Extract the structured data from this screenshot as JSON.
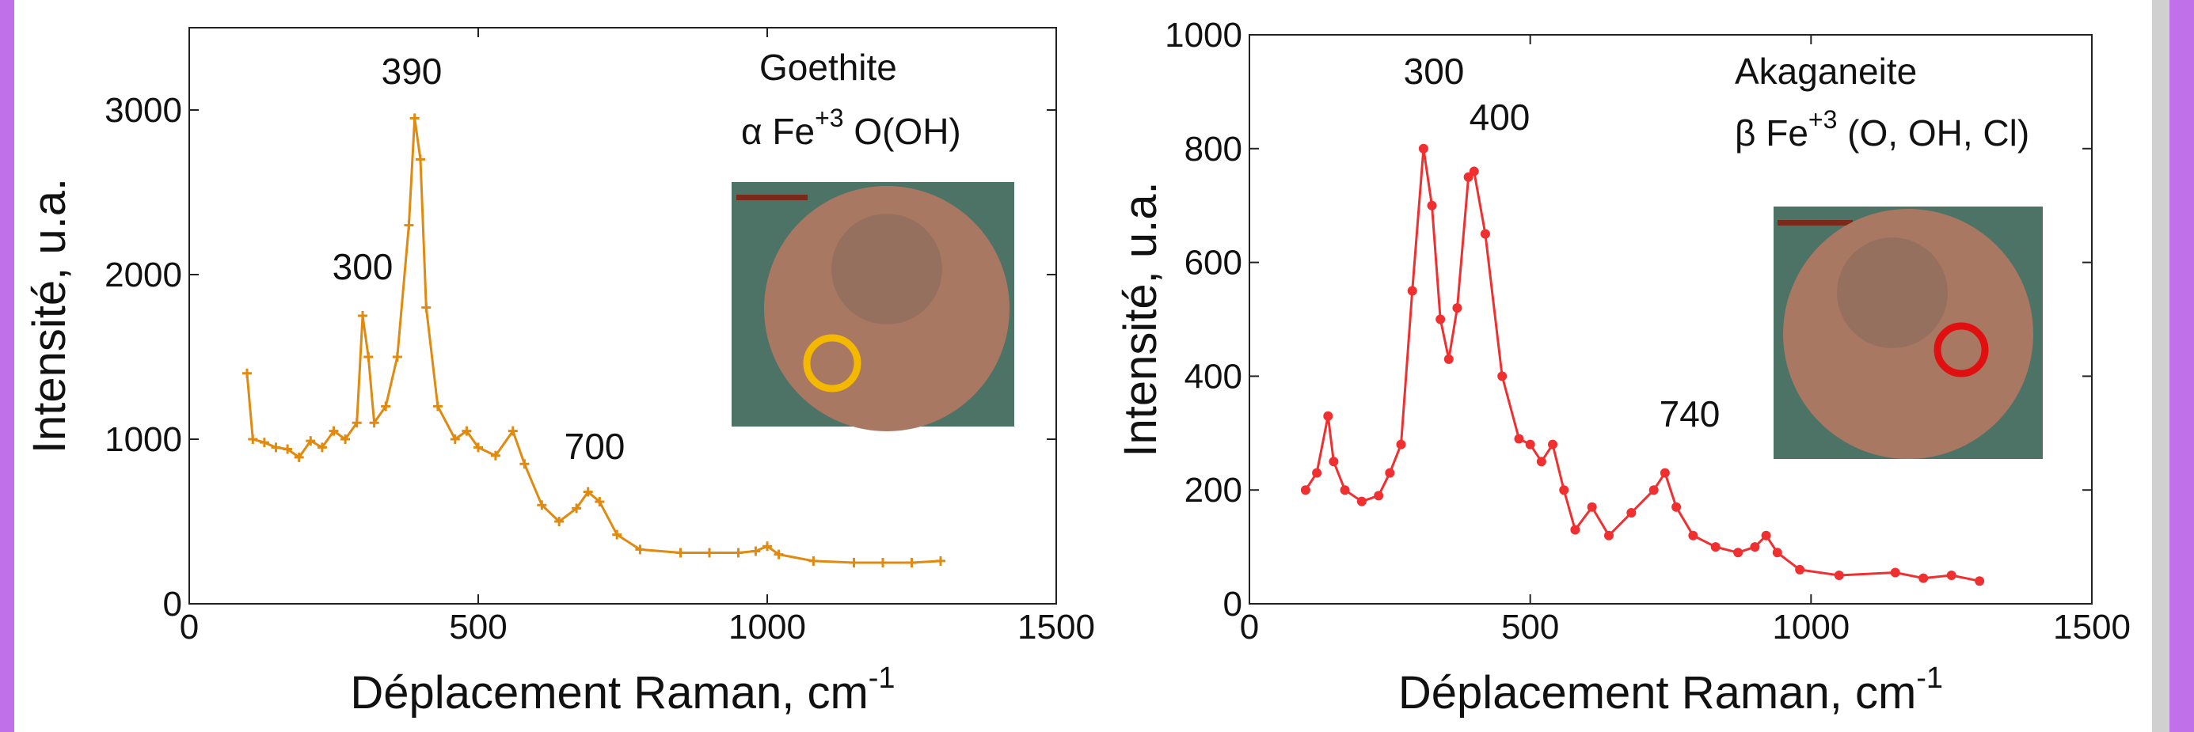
{
  "chart_data": [
    {
      "type": "line",
      "color": "#e08a10",
      "x": [
        100,
        110,
        130,
        150,
        170,
        190,
        210,
        230,
        250,
        270,
        290,
        300,
        310,
        320,
        340,
        360,
        380,
        390,
        400,
        410,
        430,
        460,
        480,
        500,
        530,
        560,
        580,
        610,
        640,
        670,
        690,
        710,
        740,
        780,
        850,
        900,
        950,
        980,
        1000,
        1020,
        1080,
        1150,
        1200,
        1250,
        1300
      ],
      "values": [
        1400,
        1000,
        980,
        950,
        940,
        890,
        990,
        950,
        1050,
        1000,
        1100,
        1750,
        1500,
        1100,
        1200,
        1500,
        2300,
        2950,
        2700,
        1800,
        1200,
        1000,
        1050,
        950,
        900,
        1050,
        850,
        600,
        500,
        580,
        680,
        620,
        420,
        330,
        310,
        310,
        310,
        320,
        350,
        300,
        260,
        250,
        250,
        250,
        260
      ],
      "xlim": [
        0,
        1500
      ],
      "xticks": [
        0,
        500,
        1000,
        1500
      ],
      "ylim": [
        0,
        3500
      ],
      "yticks": [
        0,
        1000,
        2000,
        3000
      ],
      "x_label": [
        "Déplacement Raman, cm",
        "-1"
      ],
      "y_label": "Intensité, u.a.",
      "annotations": [
        "390",
        "300",
        "700"
      ],
      "mineral": "Goethite",
      "formula": [
        "α Fe",
        "+3",
        " O(OH)"
      ]
    },
    {
      "type": "line",
      "color": "#f03030",
      "x": [
        100,
        120,
        140,
        150,
        170,
        200,
        230,
        250,
        270,
        290,
        310,
        325,
        340,
        355,
        370,
        390,
        400,
        420,
        450,
        480,
        500,
        520,
        540,
        560,
        580,
        610,
        640,
        680,
        720,
        740,
        760,
        790,
        830,
        870,
        900,
        920,
        940,
        980,
        1050,
        1150,
        1200,
        1250,
        1300
      ],
      "values": [
        200,
        230,
        330,
        250,
        200,
        180,
        190,
        230,
        280,
        550,
        800,
        700,
        500,
        430,
        520,
        750,
        760,
        650,
        400,
        290,
        280,
        250,
        280,
        200,
        130,
        170,
        120,
        160,
        200,
        230,
        170,
        120,
        100,
        90,
        100,
        120,
        90,
        60,
        50,
        55,
        45,
        50,
        40
      ],
      "xlim": [
        0,
        1500
      ],
      "xticks": [
        0,
        500,
        1000,
        1500
      ],
      "ylim": [
        0,
        1000
      ],
      "yticks": [
        0,
        200,
        400,
        600,
        800,
        1000
      ],
      "x_label": [
        "Déplacement Raman, cm",
        "-1"
      ],
      "y_label": "Intensité, u.a.",
      "annotations": [
        "300",
        "400",
        "740"
      ],
      "mineral": "Akaganeite",
      "formula": [
        "β Fe",
        "+3",
        " (O, OH, Cl)"
      ]
    }
  ]
}
